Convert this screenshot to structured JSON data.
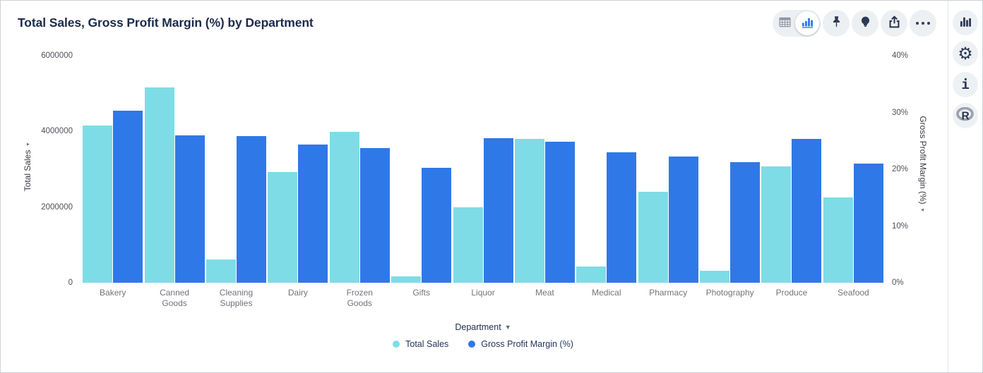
{
  "header": {
    "title": "Total Sales, Gross Profit Margin (%) by Department"
  },
  "toolbar": {
    "view_toggle": {
      "options": [
        "table",
        "chart"
      ],
      "selected": "chart"
    },
    "buttons": [
      {
        "name": "pin",
        "icon": "pin-icon"
      },
      {
        "name": "insights",
        "icon": "lightbulb-icon"
      },
      {
        "name": "share",
        "icon": "share-icon"
      },
      {
        "name": "more",
        "icon": "ellipsis-icon"
      }
    ]
  },
  "right_sidebar": {
    "buttons": [
      {
        "name": "chart-config",
        "icon": "bar-chart-icon"
      },
      {
        "name": "settings",
        "icon": "gear-icon"
      },
      {
        "name": "info",
        "icon": "info-icon"
      },
      {
        "name": "r-analysis",
        "icon": "r-logo-icon"
      }
    ]
  },
  "chart_data": {
    "type": "bar",
    "title": "Total Sales, Gross Profit Margin (%) by Department",
    "categories": [
      "Bakery",
      "Canned Goods",
      "Cleaning Supplies",
      "Dairy",
      "Frozen Goods",
      "Gifts",
      "Liquor",
      "Meat",
      "Medical",
      "Pharmacy",
      "Photography",
      "Produce",
      "Seafood"
    ],
    "series": [
      {
        "name": "Total Sales",
        "axis": "left",
        "color": "#7edce6",
        "values": [
          4150000,
          5160000,
          620000,
          2920000,
          3980000,
          170000,
          2000000,
          3810000,
          430000,
          2410000,
          320000,
          3070000,
          2260000
        ]
      },
      {
        "name": "Gross Profit Margin (%)",
        "axis": "right",
        "color": "#2f78e8",
        "values": [
          30.3,
          26.0,
          25.9,
          24.3,
          23.7,
          20.3,
          25.5,
          24.9,
          23.0,
          22.3,
          21.3,
          25.4,
          21.0
        ]
      }
    ],
    "x_axis": {
      "label": "Department"
    },
    "left_axis": {
      "label": "Total Sales",
      "max": 6000000,
      "tick_labels": [
        "0",
        "2000000",
        "4000000",
        "6000000"
      ]
    },
    "right_axis": {
      "label": "Gross Profit Margin (%)",
      "max": 40,
      "tick_labels": [
        "0%",
        "10%",
        "20%",
        "30%",
        "40%"
      ]
    },
    "legend": {
      "position": "bottom",
      "entries": [
        "Total Sales",
        "Gross Profit Margin (%)"
      ]
    },
    "grid": false
  }
}
